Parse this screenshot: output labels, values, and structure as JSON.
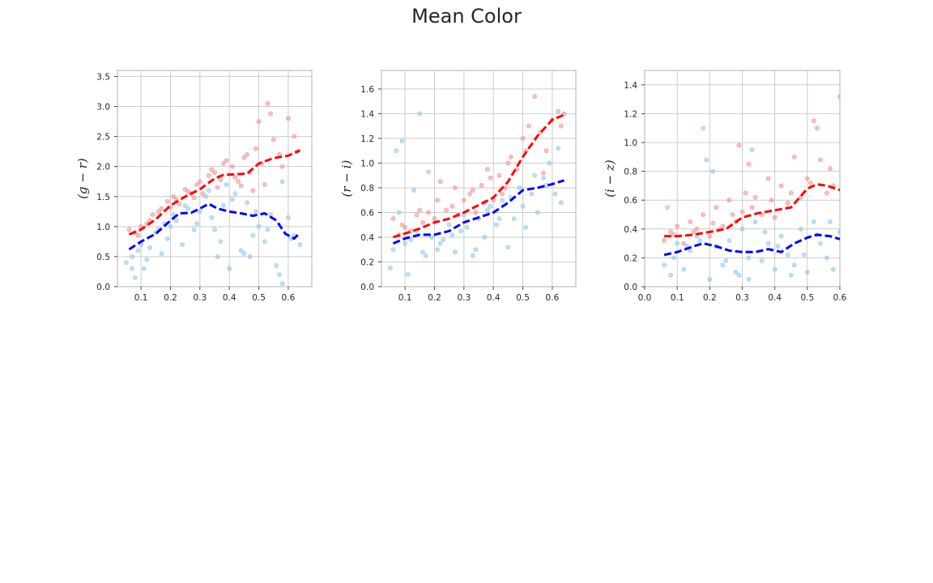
{
  "title": "Mean Color",
  "colors": {
    "red_trend": "#ff0000",
    "blue_trend": "#0000ff",
    "red_points": "#f08c8c",
    "blue_points": "#8cc3ea",
    "grid": "#cccccc",
    "axes": "#b0b0b0"
  },
  "chart_data": [
    {
      "type": "scatter",
      "ylabel": "(g − r)",
      "xlim": [
        0.02,
        0.68
      ],
      "ylim": [
        0.0,
        3.6
      ],
      "xticks": [
        0.1,
        0.2,
        0.3,
        0.4,
        0.5,
        0.6
      ],
      "yticks": [
        0.0,
        0.5,
        1.0,
        1.5,
        2.0,
        2.5,
        3.0,
        3.5
      ],
      "xtick_labels": [
        "0.1",
        "0.2",
        "0.3",
        "0.4",
        "0.5",
        "0.6"
      ],
      "ytick_labels": [
        "0.0",
        "0.5",
        "1.0",
        "1.5",
        "2.0",
        "2.5",
        "3.0",
        "3.5"
      ],
      "grid": true,
      "series": [
        {
          "kind": "trend",
          "color": "red",
          "x": [
            0.06,
            0.1,
            0.15,
            0.2,
            0.25,
            0.3,
            0.35,
            0.38,
            0.42,
            0.46,
            0.5,
            0.55,
            0.6,
            0.64
          ],
          "y": [
            0.87,
            0.95,
            1.12,
            1.35,
            1.5,
            1.62,
            1.8,
            1.86,
            1.87,
            1.88,
            2.05,
            2.14,
            2.18,
            2.27
          ]
        },
        {
          "kind": "trend",
          "color": "blue",
          "x": [
            0.06,
            0.1,
            0.15,
            0.2,
            0.23,
            0.27,
            0.3,
            0.33,
            0.36,
            0.4,
            0.44,
            0.48,
            0.52,
            0.56,
            0.59,
            0.62,
            0.64
          ],
          "y": [
            0.62,
            0.75,
            0.88,
            1.1,
            1.22,
            1.23,
            1.3,
            1.38,
            1.3,
            1.25,
            1.22,
            1.18,
            1.22,
            1.1,
            0.88,
            0.8,
            0.9
          ]
        },
        {
          "kind": "points",
          "color": "red",
          "x": [
            0.06,
            0.08,
            0.1,
            0.12,
            0.14,
            0.17,
            0.19,
            0.21,
            0.23,
            0.25,
            0.27,
            0.29,
            0.31,
            0.33,
            0.35,
            0.37,
            0.39,
            0.41,
            0.43,
            0.45,
            0.47,
            0.49,
            0.51,
            0.53,
            0.55,
            0.57,
            0.6,
            0.63,
            0.09,
            0.13,
            0.16,
            0.22,
            0.26,
            0.3,
            0.34,
            0.38,
            0.42,
            0.46,
            0.5,
            0.54,
            0.58,
            0.62,
            0.48,
            0.52,
            0.44,
            0.36,
            0.28,
            0.2
          ],
          "y": [
            0.95,
            0.9,
            1.0,
            1.05,
            1.2,
            1.3,
            1.42,
            1.5,
            1.38,
            1.62,
            1.55,
            1.7,
            1.55,
            1.85,
            1.9,
            1.78,
            2.1,
            2.0,
            1.75,
            2.15,
            1.9,
            2.3,
            2.05,
            3.05,
            2.45,
            2.2,
            2.8,
            2.25,
            0.85,
            1.1,
            1.25,
            1.45,
            1.58,
            1.75,
            1.95,
            2.05,
            1.82,
            2.2,
            2.75,
            2.88,
            2.0,
            2.5,
            1.6,
            1.7,
            1.68,
            1.65,
            1.48,
            1.32
          ]
        },
        {
          "kind": "points",
          "color": "blue",
          "x": [
            0.05,
            0.07,
            0.08,
            0.1,
            0.11,
            0.13,
            0.15,
            0.17,
            0.19,
            0.2,
            0.22,
            0.24,
            0.26,
            0.28,
            0.3,
            0.32,
            0.34,
            0.36,
            0.38,
            0.4,
            0.42,
            0.44,
            0.46,
            0.48,
            0.5,
            0.52,
            0.54,
            0.56,
            0.58,
            0.6,
            0.62,
            0.64,
            0.09,
            0.12,
            0.16,
            0.21,
            0.25,
            0.29,
            0.33,
            0.37,
            0.41,
            0.45,
            0.49,
            0.53,
            0.57,
            0.61,
            0.07,
            0.18,
            0.35,
            0.39,
            0.47,
            0.58
          ],
          "y": [
            0.4,
            0.5,
            0.15,
            0.7,
            0.3,
            0.65,
            0.9,
            0.55,
            0.8,
            1.0,
            1.1,
            0.7,
            1.3,
            0.95,
            1.25,
            1.5,
            1.15,
            0.5,
            1.35,
            0.3,
            1.55,
            0.6,
            1.4,
            0.85,
            1.0,
            0.75,
            1.2,
            0.35,
            1.75,
            1.15,
            0.85,
            0.7,
            0.6,
            0.45,
            0.95,
            1.2,
            1.35,
            1.05,
            1.6,
            0.75,
            1.45,
            0.55,
            1.25,
            0.95,
            0.2,
            0.8,
            0.3,
            1.05,
            0.95,
            1.7,
            0.5,
            0.05
          ]
        }
      ]
    },
    {
      "type": "scatter",
      "ylabel": "(r − i)",
      "xlim": [
        0.02,
        0.68
      ],
      "ylim": [
        0.0,
        1.75
      ],
      "xticks": [
        0.1,
        0.2,
        0.3,
        0.4,
        0.5,
        0.6
      ],
      "yticks": [
        0.0,
        0.2,
        0.4,
        0.6,
        0.8,
        1.0,
        1.2,
        1.4,
        1.6
      ],
      "xtick_labels": [
        "0.1",
        "0.2",
        "0.3",
        "0.4",
        "0.5",
        "0.6"
      ],
      "ytick_labels": [
        "0.0",
        "0.2",
        "0.4",
        "0.6",
        "0.8",
        "1.0",
        "1.2",
        "1.4",
        "1.6"
      ],
      "grid": true,
      "series": [
        {
          "kind": "trend",
          "color": "red",
          "x": [
            0.06,
            0.1,
            0.15,
            0.2,
            0.25,
            0.3,
            0.35,
            0.4,
            0.45,
            0.5,
            0.55,
            0.6,
            0.64
          ],
          "y": [
            0.4,
            0.43,
            0.47,
            0.52,
            0.55,
            0.6,
            0.66,
            0.72,
            0.85,
            1.05,
            1.22,
            1.35,
            1.39
          ]
        },
        {
          "kind": "trend",
          "color": "blue",
          "x": [
            0.06,
            0.1,
            0.15,
            0.2,
            0.25,
            0.3,
            0.35,
            0.4,
            0.45,
            0.5,
            0.55,
            0.6,
            0.64
          ],
          "y": [
            0.35,
            0.39,
            0.42,
            0.42,
            0.45,
            0.52,
            0.56,
            0.6,
            0.68,
            0.78,
            0.8,
            0.83,
            0.86
          ]
        },
        {
          "kind": "points",
          "color": "red",
          "x": [
            0.06,
            0.08,
            0.1,
            0.12,
            0.14,
            0.16,
            0.18,
            0.2,
            0.22,
            0.24,
            0.26,
            0.28,
            0.3,
            0.32,
            0.34,
            0.36,
            0.38,
            0.4,
            0.42,
            0.44,
            0.46,
            0.48,
            0.5,
            0.52,
            0.54,
            0.56,
            0.58,
            0.6,
            0.62,
            0.64,
            0.09,
            0.15,
            0.21,
            0.27,
            0.33,
            0.39,
            0.45,
            0.51,
            0.57,
            0.63,
            0.37,
            0.43
          ],
          "y": [
            0.55,
            0.42,
            0.48,
            0.45,
            0.58,
            0.52,
            0.6,
            0.55,
            0.85,
            0.62,
            0.65,
            0.58,
            0.7,
            0.75,
            0.6,
            0.82,
            0.95,
            0.7,
            0.9,
            0.8,
            1.05,
            0.95,
            1.2,
            1.3,
            1.54,
            1.25,
            1.1,
            1.35,
            1.42,
            1.4,
            0.5,
            0.62,
            0.7,
            0.8,
            0.78,
            0.88,
            1.0,
            1.1,
            0.92,
            1.3,
            0.68,
            0.75
          ]
        },
        {
          "kind": "points",
          "color": "blue",
          "x": [
            0.05,
            0.06,
            0.07,
            0.08,
            0.09,
            0.1,
            0.11,
            0.13,
            0.15,
            0.17,
            0.19,
            0.21,
            0.23,
            0.25,
            0.27,
            0.29,
            0.31,
            0.33,
            0.35,
            0.37,
            0.39,
            0.41,
            0.43,
            0.45,
            0.47,
            0.49,
            0.51,
            0.53,
            0.55,
            0.57,
            0.59,
            0.61,
            0.63,
            0.14,
            0.18,
            0.22,
            0.26,
            0.3,
            0.34,
            0.38,
            0.42,
            0.46,
            0.5,
            0.54,
            0.58,
            0.62,
            0.12,
            0.16
          ],
          "y": [
            0.15,
            0.3,
            1.1,
            0.6,
            1.18,
            0.35,
            0.1,
            0.78,
            1.4,
            0.25,
            0.4,
            0.3,
            0.38,
            0.5,
            0.28,
            0.45,
            0.48,
            0.25,
            0.55,
            0.4,
            0.65,
            0.5,
            0.7,
            0.32,
            0.55,
            0.8,
            0.48,
            0.75,
            0.6,
            0.88,
            1.0,
            0.75,
            0.68,
            0.45,
            0.93,
            0.35,
            0.42,
            0.58,
            0.3,
            0.62,
            0.55,
            0.72,
            0.65,
            0.9,
            0.82,
            1.12,
            0.38,
            0.28
          ]
        }
      ]
    },
    {
      "type": "scatter",
      "ylabel": "(i − z)",
      "xlim": [
        0.0,
        0.6
      ],
      "ylim": [
        0.0,
        1.5
      ],
      "xticks": [
        0.0,
        0.1,
        0.2,
        0.3,
        0.4,
        0.5,
        0.6
      ],
      "yticks": [
        0.0,
        0.2,
        0.4,
        0.6,
        0.8,
        1.0,
        1.2,
        1.4
      ],
      "xtick_labels": [
        "0.0",
        "0.1",
        "0.2",
        "0.3",
        "0.4",
        "0.5",
        "0.6"
      ],
      "ytick_labels": [
        "0.0",
        "0.2",
        "0.4",
        "0.6",
        "0.8",
        "1.0",
        "1.2",
        "1.4"
      ],
      "grid": true,
      "series": [
        {
          "kind": "trend",
          "color": "red",
          "x": [
            0.06,
            0.1,
            0.15,
            0.2,
            0.25,
            0.3,
            0.35,
            0.4,
            0.45,
            0.5,
            0.53,
            0.56,
            0.6
          ],
          "y": [
            0.35,
            0.35,
            0.36,
            0.38,
            0.4,
            0.48,
            0.51,
            0.53,
            0.55,
            0.68,
            0.71,
            0.7,
            0.67
          ]
        },
        {
          "kind": "trend",
          "color": "blue",
          "x": [
            0.06,
            0.1,
            0.15,
            0.18,
            0.22,
            0.26,
            0.3,
            0.34,
            0.38,
            0.42,
            0.46,
            0.5,
            0.53,
            0.57,
            0.6
          ],
          "y": [
            0.22,
            0.24,
            0.28,
            0.3,
            0.28,
            0.25,
            0.24,
            0.24,
            0.26,
            0.24,
            0.3,
            0.34,
            0.36,
            0.35,
            0.33
          ]
        },
        {
          "kind": "points",
          "color": "red",
          "x": [
            0.06,
            0.08,
            0.1,
            0.12,
            0.14,
            0.16,
            0.18,
            0.2,
            0.22,
            0.24,
            0.26,
            0.28,
            0.3,
            0.32,
            0.34,
            0.36,
            0.38,
            0.4,
            0.42,
            0.44,
            0.46,
            0.48,
            0.5,
            0.52,
            0.54,
            0.56,
            0.58,
            0.6,
            0.09,
            0.15,
            0.21,
            0.27,
            0.33,
            0.39,
            0.45,
            0.51,
            0.57,
            0.29,
            0.31,
            0.53
          ],
          "y": [
            0.32,
            0.38,
            0.42,
            0.3,
            0.45,
            0.4,
            0.5,
            0.35,
            0.55,
            0.42,
            0.6,
            0.45,
            0.52,
            0.85,
            0.62,
            0.5,
            0.75,
            0.48,
            0.7,
            0.58,
            0.9,
            0.62,
            0.75,
            1.15,
            0.88,
            0.65,
            0.7,
            1.32,
            0.36,
            0.38,
            0.44,
            0.5,
            0.55,
            0.6,
            0.65,
            0.72,
            0.82,
            0.98,
            0.65,
            1.1
          ]
        },
        {
          "kind": "points",
          "color": "blue",
          "x": [
            0.06,
            0.07,
            0.08,
            0.1,
            0.12,
            0.14,
            0.16,
            0.18,
            0.2,
            0.22,
            0.24,
            0.26,
            0.28,
            0.3,
            0.32,
            0.34,
            0.36,
            0.38,
            0.4,
            0.42,
            0.44,
            0.46,
            0.48,
            0.5,
            0.52,
            0.54,
            0.56,
            0.58,
            0.6,
            0.09,
            0.13,
            0.17,
            0.21,
            0.25,
            0.29,
            0.33,
            0.37,
            0.41,
            0.45,
            0.49,
            0.53,
            0.57,
            0.19,
            0.23,
            0.32
          ],
          "y": [
            0.15,
            0.55,
            0.08,
            0.3,
            0.12,
            0.25,
            0.35,
            1.1,
            0.05,
            0.28,
            0.15,
            0.32,
            0.1,
            0.4,
            0.2,
            0.45,
            0.18,
            0.3,
            0.12,
            0.35,
            0.22,
            0.15,
            0.4,
            0.1,
            0.45,
            0.3,
            0.2,
            0.12,
            0.38,
            0.2,
            0.28,
            0.32,
            0.8,
            0.18,
            0.08,
            0.95,
            0.38,
            0.28,
            0.08,
            0.22,
            0.36,
            0.45,
            0.88,
            0.4,
            0.05
          ]
        }
      ]
    }
  ]
}
